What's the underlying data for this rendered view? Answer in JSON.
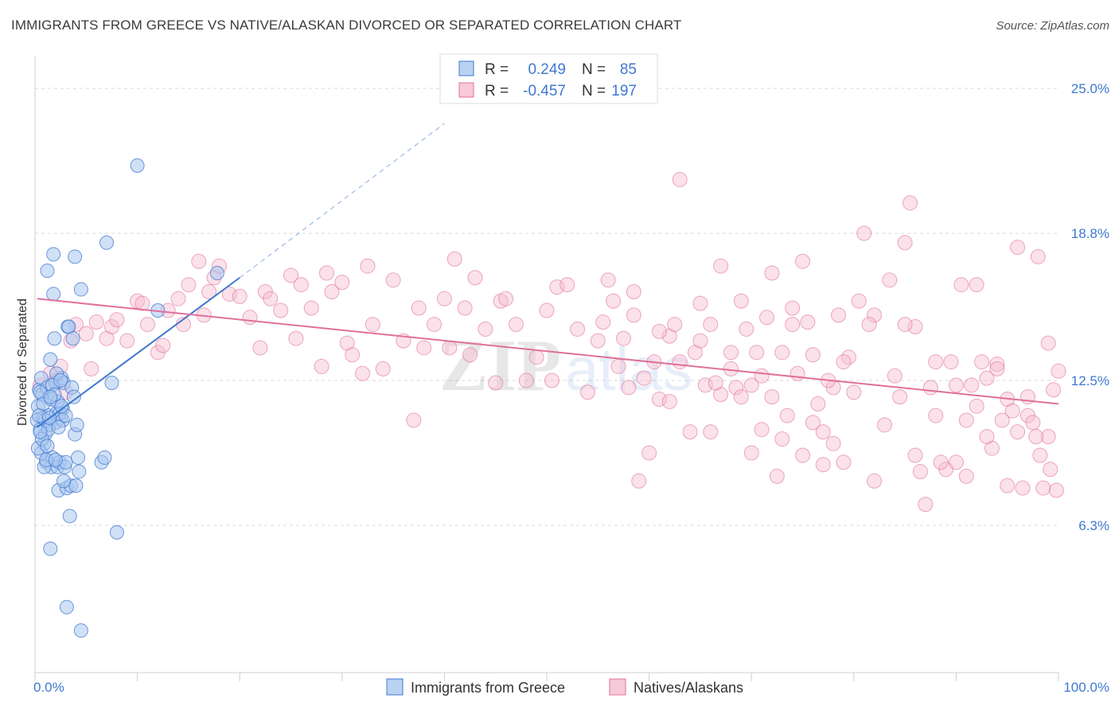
{
  "title": "IMMIGRANTS FROM GREECE VS NATIVE/ALASKAN DIVORCED OR SEPARATED CORRELATION CHART",
  "source": "Source: ZipAtlas.com",
  "colors": {
    "blue": "#3f78d0",
    "blue_fill": "#a9c7ee",
    "pink": "#e0709a",
    "pink_fill": "#f6bcd0",
    "grid": "#d9d9d9"
  },
  "chart_data": {
    "type": "scatter",
    "title": "IMMIGRANTS FROM GREECE VS NATIVE/ALASKAN DIVORCED OR SEPARATED CORRELATION CHART",
    "xlabel": "",
    "ylabel": "Divorced or Separated",
    "xlim": [
      0,
      100
    ],
    "ylim": [
      0,
      26.4
    ],
    "x_ticks": [
      "0.0%",
      "100.0%"
    ],
    "y_ticks": [
      {
        "value": 6.3,
        "label": "6.3%"
      },
      {
        "value": 12.5,
        "label": "12.5%"
      },
      {
        "value": 18.8,
        "label": "18.8%"
      },
      {
        "value": 25.0,
        "label": "25.0%"
      }
    ],
    "grid": "horizontal dashed",
    "legend": [
      {
        "series": "Immigrants from Greece",
        "r_label": "R =",
        "r": "0.249",
        "n_label": "N =",
        "n": "85"
      },
      {
        "series": "Natives/Alaskans",
        "r_label": "R =",
        "r": "-0.457",
        "n_label": "N =",
        "n": "197"
      }
    ],
    "series": [
      {
        "name": "Immigrants from Greece",
        "color": "#3f78d0",
        "trend": {
          "x": [
            0.2,
            20.0
          ],
          "y": [
            10.5,
            16.9
          ],
          "dashed_to": [
            40.0,
            23.5
          ]
        },
        "points": [
          [
            0.2,
            10.8
          ],
          [
            0.3,
            11.4
          ],
          [
            0.4,
            12.1
          ],
          [
            0.5,
            10.4
          ],
          [
            0.6,
            12.6
          ],
          [
            0.7,
            11.9
          ],
          [
            0.8,
            10.9
          ],
          [
            0.9,
            9.8
          ],
          [
            1.0,
            10.2
          ],
          [
            1.1,
            9.0
          ],
          [
            1.2,
            12.2
          ],
          [
            1.3,
            11.0
          ],
          [
            1.4,
            10.6
          ],
          [
            1.5,
            13.4
          ],
          [
            1.6,
            8.8
          ],
          [
            1.7,
            9.2
          ],
          [
            1.8,
            16.2
          ],
          [
            1.9,
            14.3
          ],
          [
            2.0,
            12.4
          ],
          [
            2.1,
            11.1
          ],
          [
            2.2,
            8.8
          ],
          [
            2.3,
            7.8
          ],
          [
            2.4,
            9.0
          ],
          [
            2.5,
            10.9
          ],
          [
            2.6,
            12.6
          ],
          [
            2.7,
            11.3
          ],
          [
            2.8,
            12.4
          ],
          [
            2.9,
            8.8
          ],
          [
            3.0,
            9.0
          ],
          [
            3.1,
            7.9
          ],
          [
            3.2,
            14.8
          ],
          [
            3.3,
            14.8
          ],
          [
            3.4,
            6.7
          ],
          [
            3.5,
            8.0
          ],
          [
            3.6,
            12.2
          ],
          [
            3.7,
            14.3
          ],
          [
            3.8,
            11.8
          ],
          [
            3.9,
            10.2
          ],
          [
            4.0,
            8.0
          ],
          [
            4.1,
            10.6
          ],
          [
            4.2,
            9.2
          ],
          [
            4.3,
            8.6
          ],
          [
            4.5,
            16.4
          ],
          [
            1.2,
            17.2
          ],
          [
            1.8,
            17.9
          ],
          [
            3.1,
            2.8
          ],
          [
            3.9,
            17.8
          ],
          [
            4.5,
            1.8
          ],
          [
            6.5,
            9.0
          ],
          [
            7.0,
            18.4
          ],
          [
            7.5,
            12.4
          ],
          [
            8.0,
            6.0
          ],
          [
            6.8,
            9.2
          ],
          [
            10.0,
            21.7
          ],
          [
            1.5,
            5.3
          ],
          [
            2.0,
            10.7
          ],
          [
            0.5,
            12.0
          ],
          [
            0.8,
            11.5
          ],
          [
            1.0,
            10.8
          ],
          [
            1.3,
            10.4
          ],
          [
            1.6,
            11.7
          ],
          [
            2.1,
            12.8
          ],
          [
            2.4,
            11.1
          ],
          [
            2.7,
            10.8
          ],
          [
            0.4,
            11.0
          ],
          [
            0.6,
            9.4
          ],
          [
            0.9,
            8.8
          ],
          [
            1.1,
            9.1
          ],
          [
            1.4,
            10.9
          ],
          [
            1.7,
            12.3
          ],
          [
            2.0,
            9.1
          ],
          [
            2.2,
            11.6
          ],
          [
            2.5,
            12.5
          ],
          [
            2.8,
            8.2
          ],
          [
            3.0,
            11.0
          ],
          [
            0.3,
            9.6
          ],
          [
            0.7,
            10.0
          ],
          [
            1.9,
            11.9
          ],
          [
            2.6,
            11.4
          ],
          [
            1.5,
            11.8
          ],
          [
            0.5,
            10.3
          ],
          [
            1.2,
            9.7
          ],
          [
            2.3,
            10.5
          ],
          [
            12.0,
            15.5
          ],
          [
            17.8,
            17.1
          ]
        ]
      },
      {
        "name": "Natives/Alaskans",
        "color": "#e0709a",
        "trend": {
          "x": [
            0.2,
            100.0
          ],
          "y": [
            16.0,
            11.5
          ]
        },
        "points": [
          [
            0.5,
            12.3
          ],
          [
            1.5,
            12.8
          ],
          [
            2.0,
            12.5
          ],
          [
            2.5,
            13.1
          ],
          [
            3.0,
            12.0
          ],
          [
            3.5,
            14.2
          ],
          [
            4.0,
            14.9
          ],
          [
            5.0,
            14.5
          ],
          [
            5.5,
            13.0
          ],
          [
            6.0,
            15.0
          ],
          [
            7.0,
            14.3
          ],
          [
            7.5,
            14.8
          ],
          [
            8.0,
            15.1
          ],
          [
            9.0,
            14.2
          ],
          [
            10.0,
            15.9
          ],
          [
            10.5,
            15.8
          ],
          [
            11.0,
            14.9
          ],
          [
            12.0,
            13.7
          ],
          [
            12.5,
            14.0
          ],
          [
            13.0,
            15.5
          ],
          [
            14.0,
            16.0
          ],
          [
            14.5,
            14.9
          ],
          [
            15.0,
            16.6
          ],
          [
            16.0,
            17.6
          ],
          [
            16.5,
            15.3
          ],
          [
            17.0,
            16.3
          ],
          [
            17.5,
            16.9
          ],
          [
            18.0,
            17.4
          ],
          [
            19.0,
            16.2
          ],
          [
            20.0,
            16.1
          ],
          [
            21.0,
            15.2
          ],
          [
            22.0,
            13.9
          ],
          [
            22.5,
            16.3
          ],
          [
            23.0,
            16.0
          ],
          [
            24.0,
            15.5
          ],
          [
            25.0,
            17.0
          ],
          [
            25.5,
            14.3
          ],
          [
            26.0,
            16.6
          ],
          [
            27.0,
            15.6
          ],
          [
            28.0,
            13.1
          ],
          [
            28.5,
            17.1
          ],
          [
            29.0,
            16.3
          ],
          [
            30.0,
            16.7
          ],
          [
            30.5,
            14.1
          ],
          [
            31.0,
            13.6
          ],
          [
            32.0,
            12.8
          ],
          [
            32.5,
            17.4
          ],
          [
            33.0,
            14.9
          ],
          [
            34.0,
            13.0
          ],
          [
            35.0,
            16.8
          ],
          [
            36.0,
            14.2
          ],
          [
            37.0,
            10.8
          ],
          [
            37.5,
            15.6
          ],
          [
            38.0,
            13.9
          ],
          [
            39.0,
            14.9
          ],
          [
            40.0,
            16.0
          ],
          [
            40.5,
            13.9
          ],
          [
            41.0,
            17.7
          ],
          [
            42.0,
            15.6
          ],
          [
            42.5,
            13.6
          ],
          [
            43.0,
            16.9
          ],
          [
            44.0,
            14.7
          ],
          [
            45.0,
            12.4
          ],
          [
            45.5,
            15.9
          ],
          [
            46.0,
            16.0
          ],
          [
            47.0,
            14.9
          ],
          [
            48.0,
            12.5
          ],
          [
            49.0,
            13.5
          ],
          [
            50.0,
            15.5
          ],
          [
            50.5,
            12.5
          ],
          [
            51.0,
            16.5
          ],
          [
            52.0,
            16.6
          ],
          [
            53.0,
            14.7
          ],
          [
            54.0,
            12.0
          ],
          [
            55.0,
            14.2
          ],
          [
            55.5,
            15.0
          ],
          [
            56.0,
            16.8
          ],
          [
            57.0,
            13.1
          ],
          [
            58.0,
            12.2
          ],
          [
            58.5,
            15.3
          ],
          [
            59.0,
            8.2
          ],
          [
            60.0,
            9.4
          ],
          [
            61.0,
            11.7
          ],
          [
            62.0,
            14.4
          ],
          [
            63.0,
            13.3
          ],
          [
            64.0,
            10.3
          ],
          [
            65.0,
            15.8
          ],
          [
            65.5,
            12.3
          ],
          [
            66.0,
            14.9
          ],
          [
            67.0,
            11.9
          ],
          [
            68.0,
            13.7
          ],
          [
            69.0,
            15.9
          ],
          [
            70.0,
            12.3
          ],
          [
            71.0,
            10.4
          ],
          [
            72.0,
            11.8
          ],
          [
            73.0,
            13.7
          ],
          [
            74.0,
            15.6
          ],
          [
            75.0,
            17.6
          ],
          [
            75.5,
            15.0
          ],
          [
            76.0,
            13.6
          ],
          [
            77.0,
            10.3
          ],
          [
            78.0,
            12.2
          ],
          [
            79.0,
            9.0
          ],
          [
            80.0,
            12.0
          ],
          [
            81.0,
            18.8
          ],
          [
            82.0,
            15.3
          ],
          [
            83.0,
            10.6
          ],
          [
            84.0,
            12.7
          ],
          [
            85.0,
            18.4
          ],
          [
            86.0,
            14.8
          ],
          [
            87.0,
            7.2
          ],
          [
            88.0,
            13.3
          ],
          [
            89.0,
            8.7
          ],
          [
            90.0,
            12.3
          ],
          [
            91.0,
            8.4
          ],
          [
            92.0,
            16.6
          ],
          [
            93.0,
            12.6
          ],
          [
            94.0,
            13.2
          ],
          [
            95.0,
            11.7
          ],
          [
            96.0,
            18.2
          ],
          [
            97.0,
            11.0
          ],
          [
            98.0,
            17.8
          ],
          [
            99.0,
            14.1
          ],
          [
            99.5,
            12.1
          ],
          [
            63.0,
            21.1
          ],
          [
            67.0,
            17.4
          ],
          [
            72.5,
            8.4
          ],
          [
            75.0,
            9.3
          ],
          [
            80.5,
            15.9
          ],
          [
            82.0,
            8.2
          ],
          [
            85.5,
            20.1
          ],
          [
            86.5,
            8.6
          ],
          [
            88.5,
            9.0
          ],
          [
            90.5,
            16.6
          ],
          [
            91.5,
            12.3
          ],
          [
            92.5,
            13.3
          ],
          [
            93.5,
            9.6
          ],
          [
            94.5,
            10.8
          ],
          [
            95.5,
            11.2
          ],
          [
            96.5,
            7.9
          ],
          [
            97.5,
            10.7
          ],
          [
            98.5,
            7.9
          ],
          [
            99.0,
            10.1
          ],
          [
            100.0,
            12.9
          ],
          [
            59.5,
            12.6
          ],
          [
            61.0,
            14.6
          ],
          [
            62.5,
            14.9
          ],
          [
            64.5,
            13.7
          ],
          [
            66.5,
            12.4
          ],
          [
            68.5,
            12.2
          ],
          [
            69.5,
            14.7
          ],
          [
            70.5,
            13.7
          ],
          [
            71.5,
            15.2
          ],
          [
            73.5,
            11.0
          ],
          [
            74.5,
            12.8
          ],
          [
            76.5,
            11.5
          ],
          [
            77.5,
            12.5
          ],
          [
            78.5,
            15.3
          ],
          [
            79.5,
            13.5
          ],
          [
            81.5,
            14.9
          ],
          [
            83.5,
            16.8
          ],
          [
            84.5,
            11.8
          ],
          [
            85.0,
            14.9
          ],
          [
            86.0,
            9.3
          ],
          [
            87.5,
            12.2
          ],
          [
            88.0,
            11.0
          ],
          [
            89.5,
            13.3
          ],
          [
            90.0,
            9.0
          ],
          [
            91.0,
            10.8
          ],
          [
            92.0,
            11.4
          ],
          [
            93.0,
            10.1
          ],
          [
            94.0,
            13.0
          ],
          [
            95.0,
            8.0
          ],
          [
            96.0,
            10.3
          ],
          [
            97.0,
            11.8
          ],
          [
            97.8,
            10.1
          ],
          [
            98.2,
            9.3
          ],
          [
            99.2,
            8.7
          ],
          [
            99.8,
            7.8
          ],
          [
            56.5,
            15.9
          ],
          [
            57.5,
            14.3
          ],
          [
            58.5,
            16.3
          ],
          [
            60.5,
            13.3
          ],
          [
            62.0,
            11.6
          ],
          [
            65.0,
            14.2
          ],
          [
            66.0,
            10.3
          ],
          [
            68.0,
            13.0
          ],
          [
            69.0,
            11.8
          ],
          [
            70.0,
            9.4
          ],
          [
            71.0,
            12.7
          ],
          [
            72.0,
            17.1
          ],
          [
            73.0,
            10.0
          ],
          [
            74.0,
            14.9
          ],
          [
            76.0,
            10.7
          ],
          [
            77.0,
            8.9
          ],
          [
            78.0,
            9.8
          ],
          [
            79.0,
            13.3
          ]
        ]
      }
    ]
  },
  "bottom_legend": [
    {
      "label": "Immigrants from Greece"
    },
    {
      "label": "Natives/Alaskans"
    }
  ]
}
